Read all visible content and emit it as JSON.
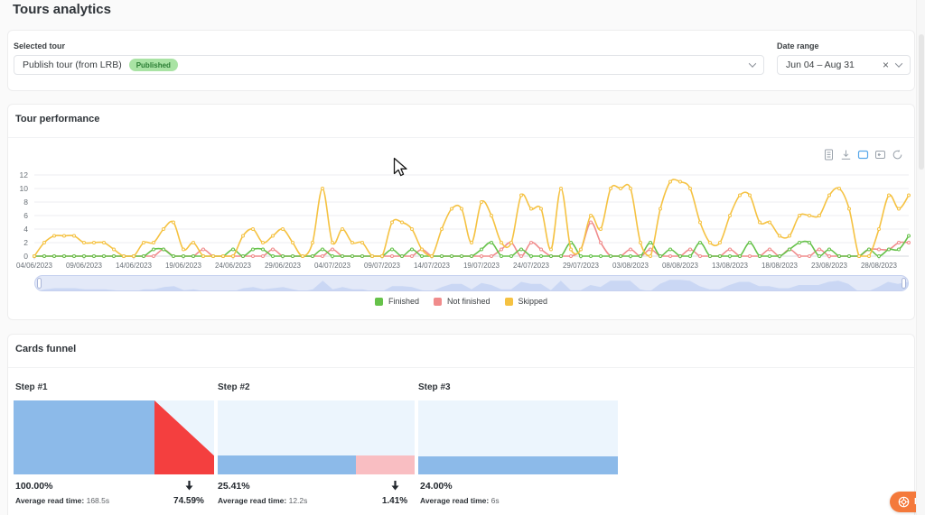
{
  "page": {
    "title": "Tours analytics"
  },
  "filters": {
    "selected_tour": {
      "label": "Selected tour",
      "value": "Publish tour (from LRB)",
      "badge": "Published"
    },
    "date_range": {
      "label": "Date range",
      "value": "Jun 04 – Aug 31",
      "clear_icon": "×"
    }
  },
  "tour_performance": {
    "title": "Tour performance",
    "toolbar_icons": [
      "data-view",
      "save-as-image",
      "zoom-select",
      "zoom-restore",
      "refresh"
    ]
  },
  "chart_data": {
    "type": "line",
    "title": "Tour performance",
    "x_start": "04/06/2023",
    "x_end": "31/08/2023",
    "interval_days": 1,
    "x_tick_labels": [
      "04/06/2023",
      "09/06/2023",
      "14/06/2023",
      "19/06/2023",
      "24/06/2023",
      "29/06/2023",
      "04/07/2023",
      "09/07/2023",
      "14/07/2023",
      "19/07/2023",
      "24/07/2023",
      "29/07/2023",
      "03/08/2023",
      "08/08/2023",
      "13/08/2023",
      "18/08/2023",
      "23/08/2023",
      "28/08/2023"
    ],
    "ylim": [
      0,
      12
    ],
    "y_ticks": [
      0,
      2,
      4,
      6,
      8,
      10,
      12
    ],
    "grid": true,
    "legend_position": "bottom",
    "series": [
      {
        "name": "Finished",
        "color": "#66c24a",
        "values": [
          0,
          0,
          0,
          0,
          0,
          0,
          0,
          0,
          0,
          0,
          0,
          0,
          1,
          1,
          0,
          0,
          0,
          0,
          0,
          0,
          1,
          0,
          1,
          1,
          0,
          0,
          0,
          0,
          0,
          1,
          0,
          0,
          0,
          0,
          0,
          0,
          1,
          0,
          1,
          0,
          0,
          0,
          0,
          0,
          0,
          1,
          2,
          0,
          0,
          1,
          0,
          0,
          0,
          0,
          2,
          0,
          0,
          0,
          0,
          0,
          0,
          0,
          2,
          0,
          1,
          0,
          0,
          2,
          0,
          0,
          0,
          0,
          2,
          0,
          0,
          0,
          1,
          2,
          2,
          0,
          1,
          0,
          0,
          0,
          1,
          0,
          1,
          1,
          3
        ]
      },
      {
        "name": "Not finished",
        "color": "#f08c8c",
        "values": [
          0,
          0,
          0,
          0,
          0,
          0,
          0,
          0,
          0,
          0,
          0,
          0,
          0,
          1,
          0,
          0,
          0,
          1,
          0,
          0,
          0,
          0,
          0,
          0,
          1,
          0,
          0,
          0,
          0,
          0,
          1,
          0,
          0,
          0,
          0,
          0,
          0,
          0,
          0,
          1,
          0,
          0,
          0,
          0,
          0,
          0,
          0,
          1,
          2,
          0,
          2,
          1,
          0,
          0,
          0,
          1,
          5,
          2,
          0,
          0,
          1,
          0,
          1,
          0,
          0,
          0,
          1,
          0,
          0,
          0,
          1,
          0,
          0,
          0,
          1,
          0,
          1,
          0,
          0,
          1,
          0,
          0,
          0,
          0,
          1,
          1,
          1,
          2,
          2
        ]
      },
      {
        "name": "Skipped",
        "color": "#f5c242",
        "values": [
          0,
          2,
          3,
          3,
          3,
          2,
          2,
          2,
          1,
          0,
          0,
          2,
          2,
          4,
          5,
          1,
          2,
          0,
          0,
          0,
          0,
          3,
          4,
          2,
          3,
          4,
          2,
          0,
          2,
          10,
          2,
          4,
          2,
          2,
          0,
          0,
          5,
          5,
          4,
          1,
          0,
          4,
          7,
          7,
          2,
          8,
          6,
          2,
          2,
          9,
          7,
          7,
          1,
          10,
          1,
          1,
          6,
          4,
          10,
          10,
          10,
          2,
          0,
          7,
          11,
          11,
          10,
          5,
          2,
          2,
          6,
          9,
          9,
          5,
          5,
          3,
          3,
          6,
          6,
          6,
          9,
          10,
          7,
          0,
          0,
          4,
          9,
          7,
          9
        ]
      }
    ]
  },
  "cards_funnel": {
    "title": "Cards funnel",
    "avg_label": "Average read time:",
    "steps": [
      {
        "label": "Step #1",
        "percent": "100.00%",
        "value": 100.0,
        "avg_value": "168.5s"
      },
      {
        "label": "Step #2",
        "percent": "25.41%",
        "value": 25.41,
        "avg_value": "12.2s"
      },
      {
        "label": "Step #3",
        "percent": "24.00%",
        "value": 24.0,
        "avg_value": "6s"
      }
    ],
    "drops": [
      {
        "percent": "74.59%"
      },
      {
        "percent": "1.41%"
      }
    ]
  },
  "help_button": {
    "label": "Help"
  },
  "colors": {
    "funnel_blue": "#8cbae9",
    "funnel_light": "#ecf5fd",
    "funnel_pink": "#f9bec2",
    "funnel_red": "#f43f3f",
    "slider_fill": "#e3e9f8",
    "slider_area": "#c7d5f3",
    "accent_orange": "#f4793b",
    "badge_green": "#a9e3a4"
  }
}
